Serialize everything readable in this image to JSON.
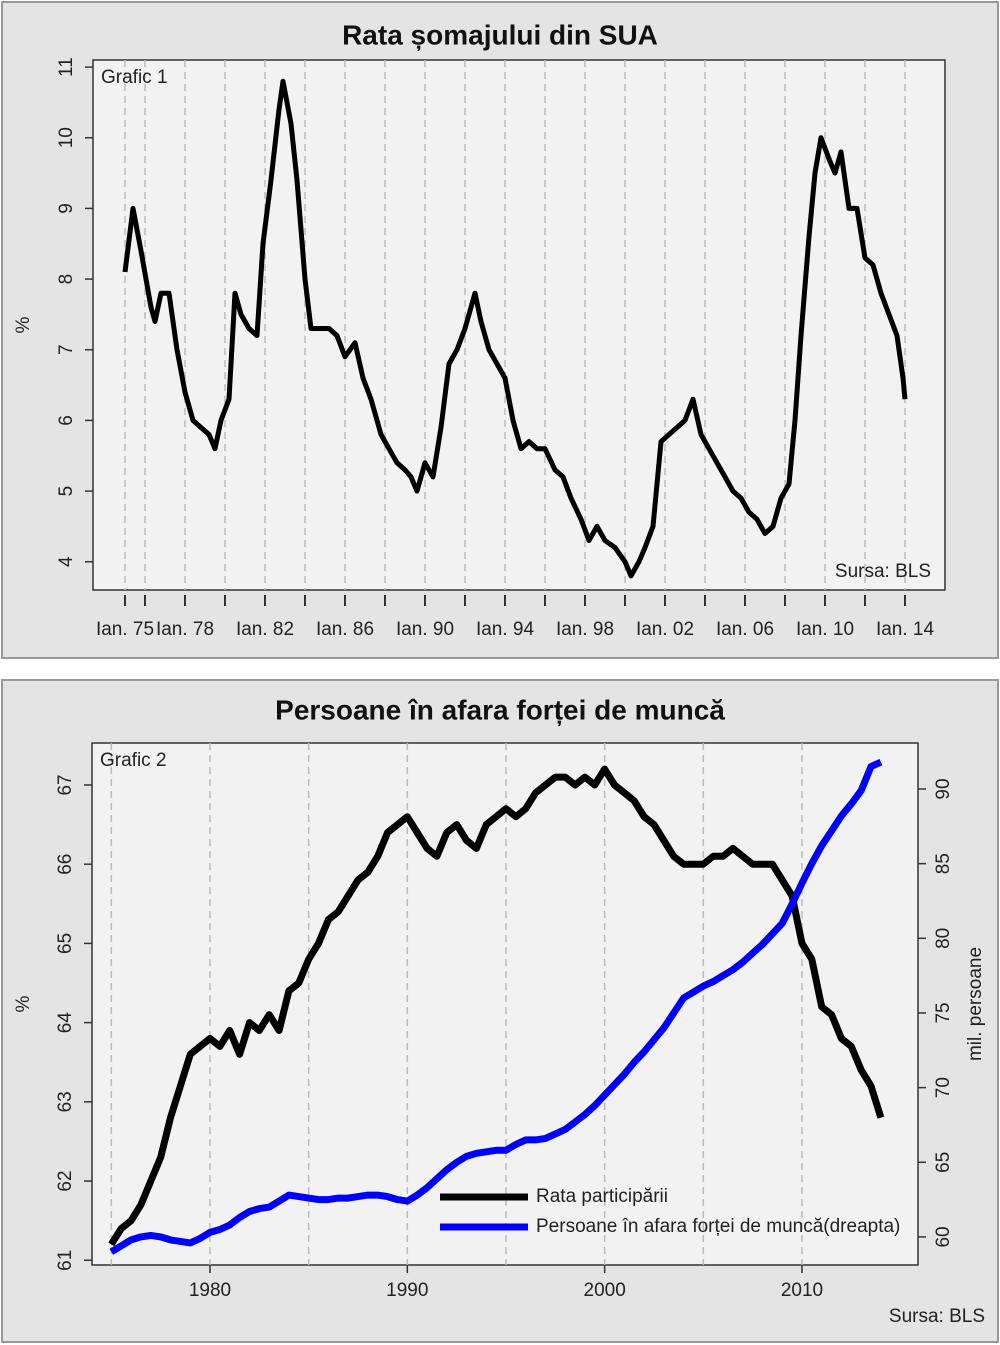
{
  "chart_data": [
    {
      "type": "line",
      "title": "Rata șomajului din SUA",
      "label": "Grafic 1",
      "source": "Sursa: BLS",
      "ylabel": "%",
      "x": [
        1975.0,
        1975.4,
        1975.8,
        1976.3,
        1976.5,
        1976.8,
        1977.2,
        1977.6,
        1978.0,
        1978.4,
        1978.8,
        1979.2,
        1979.5,
        1979.8,
        1980.2,
        1980.5,
        1980.8,
        1981.2,
        1981.6,
        1981.9,
        1982.3,
        1982.7,
        1982.9,
        1983.3,
        1983.6,
        1984.0,
        1984.3,
        1984.7,
        1985.2,
        1985.6,
        1986.0,
        1986.5,
        1986.9,
        1987.3,
        1987.8,
        1988.2,
        1988.6,
        1989.0,
        1989.3,
        1989.6,
        1990.0,
        1990.4,
        1990.8,
        1991.2,
        1991.6,
        1992.0,
        1992.5,
        1992.8,
        1993.2,
        1993.6,
        1994.0,
        1994.4,
        1994.8,
        1995.2,
        1995.6,
        1996.0,
        1996.5,
        1996.9,
        1997.3,
        1997.8,
        1998.2,
        1998.6,
        1999.0,
        1999.5,
        2000.0,
        2000.3,
        2000.7,
        2001.0,
        2001.4,
        2001.8,
        2002.2,
        2002.6,
        2003.0,
        2003.4,
        2003.8,
        2004.2,
        2004.6,
        2005.0,
        2005.4,
        2005.8,
        2006.2,
        2006.6,
        2007.0,
        2007.4,
        2007.8,
        2008.2,
        2008.5,
        2008.8,
        2009.2,
        2009.5,
        2009.8,
        2010.2,
        2010.5,
        2010.8,
        2011.2,
        2011.6,
        2012.0,
        2012.4,
        2012.8,
        2013.2,
        2013.6,
        2013.9,
        2014.0
      ],
      "series": [
        {
          "color": "#000000",
          "values": [
            8.1,
            9.0,
            8.4,
            7.6,
            7.4,
            7.8,
            7.8,
            7.0,
            6.4,
            6.0,
            5.9,
            5.8,
            5.6,
            6.0,
            6.3,
            7.8,
            7.5,
            7.3,
            7.2,
            8.5,
            9.4,
            10.4,
            10.8,
            10.2,
            9.4,
            8.0,
            7.3,
            7.3,
            7.3,
            7.2,
            6.9,
            7.1,
            6.6,
            6.3,
            5.8,
            5.6,
            5.4,
            5.3,
            5.2,
            5.0,
            5.4,
            5.2,
            5.9,
            6.8,
            7.0,
            7.3,
            7.8,
            7.4,
            7.0,
            6.8,
            6.6,
            6.0,
            5.6,
            5.7,
            5.6,
            5.6,
            5.3,
            5.2,
            4.9,
            4.6,
            4.3,
            4.5,
            4.3,
            4.2,
            4.0,
            3.8,
            4.0,
            4.2,
            4.5,
            5.7,
            5.8,
            5.9,
            6.0,
            6.3,
            5.8,
            5.6,
            5.4,
            5.2,
            5.0,
            4.9,
            4.7,
            4.6,
            4.4,
            4.5,
            4.9,
            5.1,
            6.0,
            7.2,
            8.6,
            9.5,
            10.0,
            9.7,
            9.5,
            9.8,
            9.0,
            9.0,
            8.3,
            8.2,
            7.8,
            7.5,
            7.2,
            6.6,
            6.3
          ]
        }
      ],
      "xlim": [
        1973.4,
        2016.0
      ],
      "xticks": [
        {
          "value": 1975,
          "label": "Ian. 75"
        },
        {
          "value": 1978,
          "label": "Ian. 78"
        },
        {
          "value": 1982,
          "label": "Ian. 82"
        },
        {
          "value": 1986,
          "label": "Ian. 86"
        },
        {
          "value": 1990,
          "label": "Ian. 90"
        },
        {
          "value": 1994,
          "label": "Ian. 94"
        },
        {
          "value": 1998,
          "label": "Ian. 98"
        },
        {
          "value": 2002,
          "label": "Ian. 02"
        },
        {
          "value": 2006,
          "label": "Ian. 06"
        },
        {
          "value": 2010,
          "label": "Ian. 10"
        },
        {
          "value": 2014,
          "label": "Ian. 14"
        }
      ],
      "xgrid": [
        1975,
        1976,
        1978,
        1980,
        1982,
        1984,
        1986,
        1988,
        1990,
        1992,
        1994,
        1996,
        1998,
        2000,
        2002,
        2004,
        2006,
        2008,
        2010,
        2012,
        2014
      ],
      "ylim": [
        3.6,
        11.1
      ],
      "yticks": [
        4,
        5,
        6,
        7,
        8,
        9,
        10,
        11
      ]
    },
    {
      "type": "line",
      "title": "Persoane în afara forței de muncă",
      "label": "Grafic 2",
      "source": "Sursa: BLS",
      "ylabel": "%",
      "y2label": "mil. persoane",
      "x": [
        1975.0,
        1975.5,
        1976.0,
        1976.5,
        1977.0,
        1977.5,
        1978.0,
        1978.5,
        1979.0,
        1979.5,
        1980.0,
        1980.5,
        1981.0,
        1981.5,
        1982.0,
        1982.5,
        1983.0,
        1983.5,
        1984.0,
        1984.5,
        1985.0,
        1985.5,
        1986.0,
        1986.5,
        1987.0,
        1987.5,
        1988.0,
        1988.5,
        1989.0,
        1989.5,
        1990.0,
        1990.5,
        1991.0,
        1991.5,
        1992.0,
        1992.5,
        1993.0,
        1993.5,
        1994.0,
        1994.5,
        1995.0,
        1995.5,
        1996.0,
        1996.5,
        1997.0,
        1997.5,
        1998.0,
        1998.5,
        1999.0,
        1999.5,
        2000.0,
        2000.5,
        2001.0,
        2001.5,
        2002.0,
        2002.5,
        2003.0,
        2003.5,
        2004.0,
        2004.5,
        2005.0,
        2005.5,
        2006.0,
        2006.5,
        2007.0,
        2007.5,
        2008.0,
        2008.5,
        2009.0,
        2009.5,
        2010.0,
        2010.5,
        2011.0,
        2011.5,
        2012.0,
        2012.5,
        2013.0,
        2013.5,
        2014.0
      ],
      "series": [
        {
          "name": "Rata participării",
          "color": "#000000",
          "values": [
            61.2,
            61.4,
            61.5,
            61.7,
            62.0,
            62.3,
            62.8,
            63.2,
            63.6,
            63.7,
            63.8,
            63.7,
            63.9,
            63.6,
            64.0,
            63.9,
            64.1,
            63.9,
            64.4,
            64.5,
            64.8,
            65.0,
            65.3,
            65.4,
            65.6,
            65.8,
            65.9,
            66.1,
            66.4,
            66.5,
            66.6,
            66.4,
            66.2,
            66.1,
            66.4,
            66.5,
            66.3,
            66.2,
            66.5,
            66.6,
            66.7,
            66.6,
            66.7,
            66.9,
            67.0,
            67.1,
            67.1,
            67.0,
            67.1,
            67.0,
            67.2,
            67.0,
            66.9,
            66.8,
            66.6,
            66.5,
            66.3,
            66.1,
            66.0,
            66.0,
            66.0,
            66.1,
            66.1,
            66.2,
            66.1,
            66.0,
            66.0,
            66.0,
            65.8,
            65.6,
            65.0,
            64.8,
            64.2,
            64.1,
            63.8,
            63.7,
            63.4,
            63.2,
            62.8
          ]
        },
        {
          "name": "Persoane în afara forței de muncă(dreapta)",
          "color": "#0000ff",
          "axis": "y2",
          "values": [
            59.0,
            59.4,
            59.8,
            60.0,
            60.1,
            60.0,
            59.8,
            59.7,
            59.6,
            59.9,
            60.3,
            60.5,
            60.8,
            61.3,
            61.7,
            61.9,
            62.0,
            62.4,
            62.8,
            62.7,
            62.6,
            62.5,
            62.5,
            62.6,
            62.6,
            62.7,
            62.8,
            62.8,
            62.7,
            62.5,
            62.4,
            62.8,
            63.3,
            63.9,
            64.5,
            65.0,
            65.4,
            65.6,
            65.7,
            65.8,
            65.8,
            66.2,
            66.5,
            66.5,
            66.6,
            66.9,
            67.2,
            67.7,
            68.2,
            68.8,
            69.5,
            70.2,
            70.9,
            71.7,
            72.4,
            73.2,
            74.0,
            75.0,
            76.0,
            76.4,
            76.8,
            77.1,
            77.5,
            77.9,
            78.4,
            79.0,
            79.6,
            80.3,
            81.0,
            82.3,
            83.7,
            85.0,
            86.2,
            87.2,
            88.2,
            89.0,
            89.9,
            91.5,
            91.8
          ]
        }
      ],
      "xlim": [
        1974.02,
        2015.88
      ],
      "xticks": [
        1980,
        1990,
        2000,
        2010
      ],
      "xgrid": [
        1975,
        1980,
        1985,
        1990,
        1995,
        2000,
        2005,
        2010
      ],
      "ylim": [
        60.94,
        67.53
      ],
      "yticks": [
        61,
        62,
        63,
        64,
        65,
        66,
        67
      ],
      "y2lim": [
        58.12,
        93.08
      ],
      "y2ticks": [
        60,
        65,
        70,
        75,
        80,
        85,
        90
      ],
      "legend": "lower right"
    }
  ]
}
